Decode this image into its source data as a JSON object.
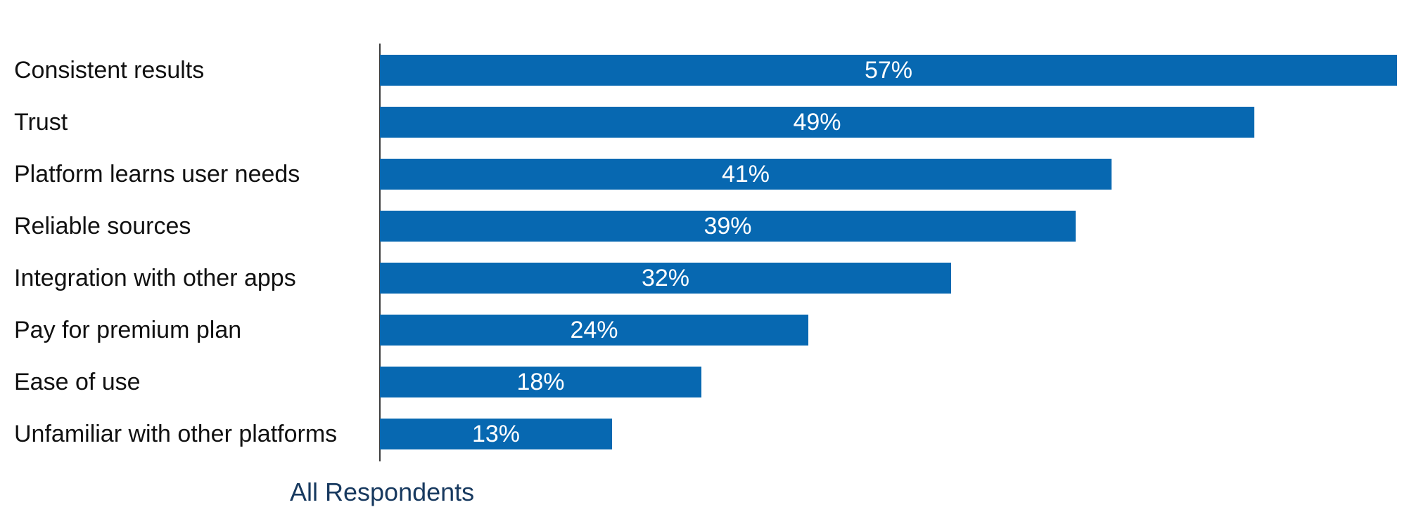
{
  "chart_data": {
    "type": "bar",
    "orientation": "horizontal",
    "title": "",
    "categories": [
      "Consistent results",
      "Trust",
      "Platform learns user needs",
      "Reliable sources",
      "Integration with other apps",
      "Pay for premium plan",
      "Ease of use",
      "Unfamiliar with other platforms"
    ],
    "values": [
      57,
      49,
      41,
      39,
      32,
      24,
      18,
      13
    ],
    "value_labels": [
      "57%",
      "49%",
      "41%",
      "39%",
      "32%",
      "24%",
      "18%",
      "13%"
    ],
    "legend": "All Respondents",
    "xlabel": "",
    "ylabel": "",
    "xlim": [
      0,
      57
    ],
    "grid": false,
    "legend_position": "bottom-left",
    "value_label_position": "centered-inside-bar",
    "colors": {
      "bar": "#0768b1",
      "value_label": "#ffffff",
      "category_label": "#111111",
      "legend_text": "#17395f",
      "axis_line": "#3c3c3c",
      "background": "#ffffff"
    }
  }
}
